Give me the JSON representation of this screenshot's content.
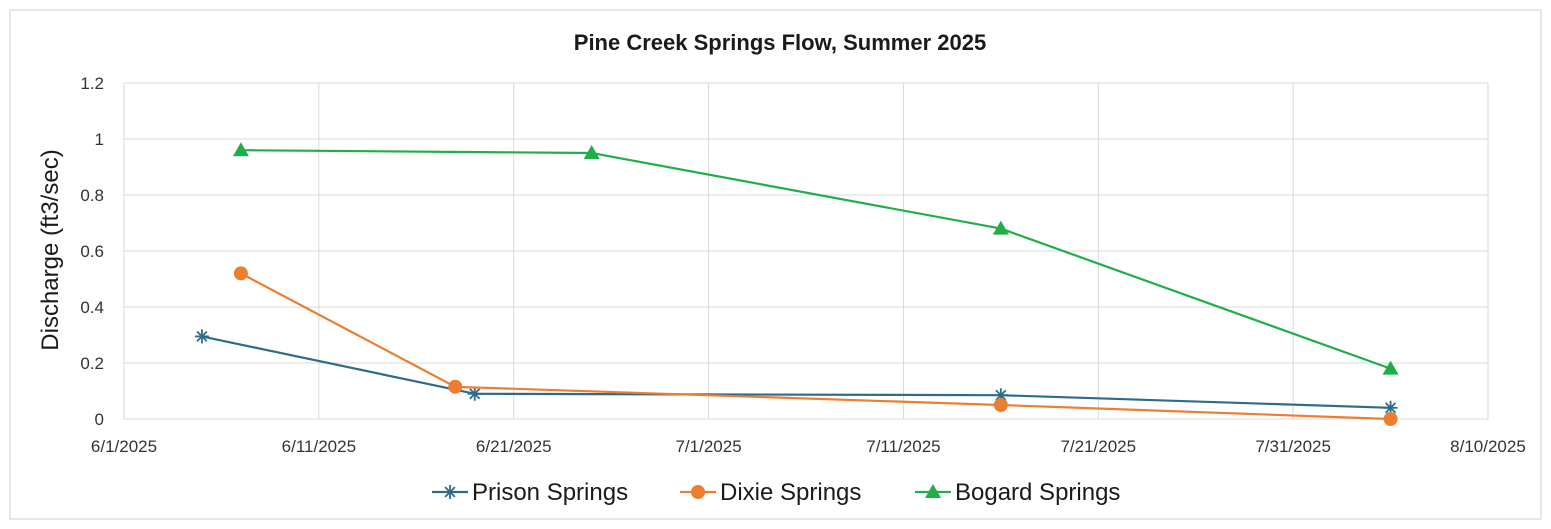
{
  "chart_data": {
    "type": "line",
    "title": "Pine Creek Springs Flow, Summer 2025",
    "xlabel": "",
    "ylabel": "Discharge (ft3/sec)",
    "xlim": [
      "2025-06-01",
      "2025-08-10"
    ],
    "ylim": [
      0,
      1.2
    ],
    "x_ticks": [
      "6/1/2025",
      "6/11/2025",
      "6/21/2025",
      "7/1/2025",
      "7/11/2025",
      "7/21/2025",
      "7/31/2025",
      "8/10/2025"
    ],
    "y_ticks": [
      "0",
      "0.2",
      "0.4",
      "0.6",
      "0.8",
      "1",
      "1.2"
    ],
    "grid": true,
    "legend_position": "bottom",
    "series": [
      {
        "name": "Prison Springs",
        "color": "#2e6b8a",
        "marker": "asterisk",
        "x": [
          "2025-06-05",
          "2025-06-19",
          "2025-07-16",
          "2025-08-05"
        ],
        "y": [
          0.295,
          0.09,
          0.085,
          0.04
        ]
      },
      {
        "name": "Dixie Springs",
        "color": "#ed7d31",
        "marker": "circle",
        "x": [
          "2025-06-07",
          "2025-06-18",
          "2025-07-16",
          "2025-08-05"
        ],
        "y": [
          0.52,
          0.115,
          0.05,
          0.0
        ]
      },
      {
        "name": "Bogard Springs",
        "color": "#1fae4a",
        "marker": "triangle",
        "x": [
          "2025-06-07",
          "2025-06-25",
          "2025-07-16",
          "2025-08-05"
        ],
        "y": [
          0.96,
          0.95,
          0.68,
          0.18
        ]
      }
    ]
  }
}
